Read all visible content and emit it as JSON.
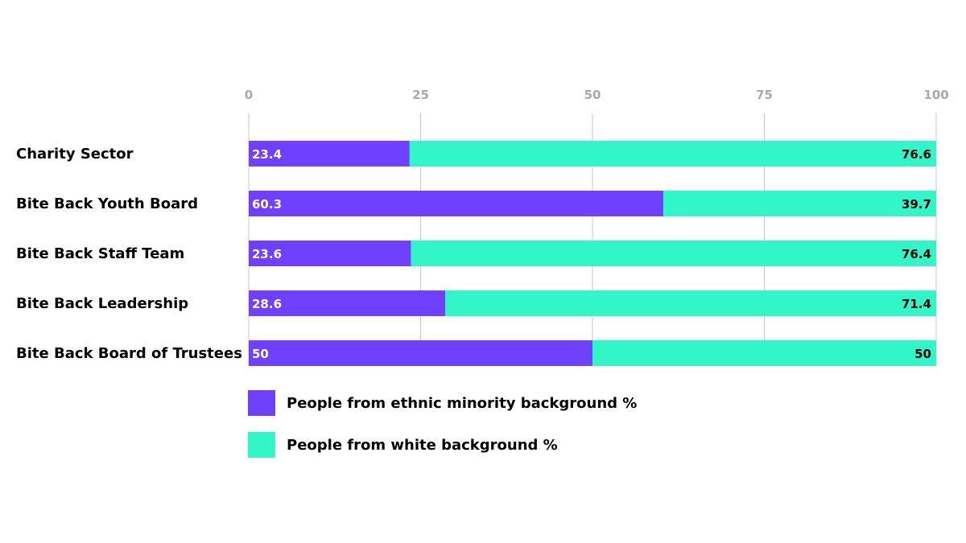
{
  "colors": {
    "ethnic_minority": "#7040ff",
    "white": "#32f5c8",
    "grid": "#c8c8c8",
    "tick_text": "#a9a9a9",
    "value_text_on_purple": "#ffffff",
    "value_text_on_teal": "#000000"
  },
  "chart_data": {
    "type": "bar",
    "orientation": "horizontal",
    "stacked": true,
    "categories": [
      "Charity Sector",
      "Bite Back Youth Board",
      "Bite Back Staff Team",
      "Bite Back Leadership",
      "Bite Back Board of Trustees"
    ],
    "series": [
      {
        "name": "People from ethnic minority background %",
        "values": [
          23.4,
          60.3,
          23.6,
          28.6,
          50
        ],
        "labels": [
          "23.4",
          "60.3",
          "23.6",
          "28.6",
          "50"
        ]
      },
      {
        "name": "People from white background %",
        "values": [
          76.6,
          39.7,
          76.4,
          71.4,
          50
        ],
        "labels": [
          "76.6",
          "39.7",
          "76.4",
          "71.4",
          "50"
        ]
      }
    ],
    "xlim": [
      0,
      100
    ],
    "xticks": [
      0,
      25,
      50,
      75,
      100
    ],
    "xtick_labels": [
      "0",
      "25",
      "50",
      "75",
      "100"
    ],
    "x_axis_position": "top",
    "grid": true,
    "legend_position": "bottom"
  }
}
